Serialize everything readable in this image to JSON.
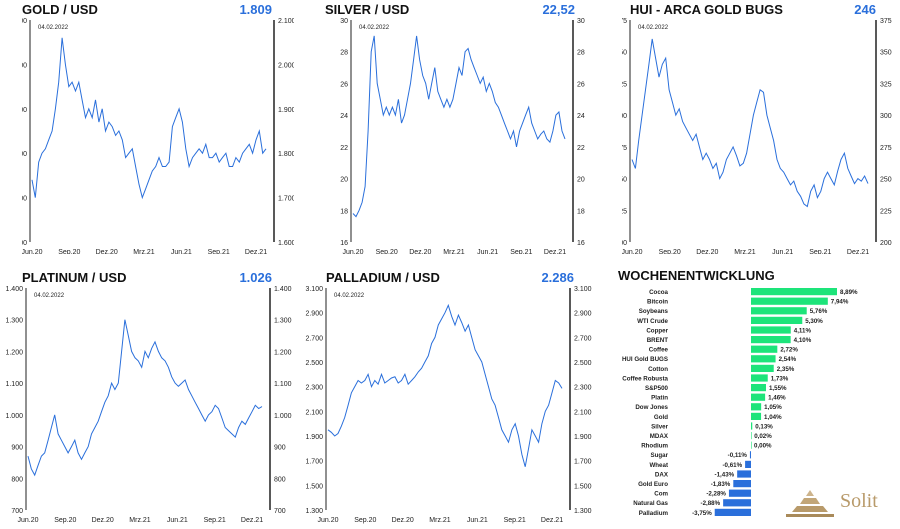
{
  "chart_data": [
    {
      "type": "line",
      "title": "GOLD / USD",
      "current_value": "1.809",
      "date_label": "04.02.2022",
      "ylim": [
        1600,
        2100
      ],
      "yticks": [
        1600,
        1700,
        1800,
        1900,
        2000,
        2100
      ],
      "ytick_labels": [
        "1.600",
        "1.700",
        "1.800",
        "1.900",
        "2.000",
        "2.100"
      ],
      "xtick_labels": [
        "Jun.20",
        "Sep.20",
        "Dez.20",
        "Mrz.21",
        "Jun.21",
        "Sep.21",
        "Dez.21"
      ],
      "series": [
        {
          "color": "#2a6fdb",
          "values": [
            1740,
            1700,
            1780,
            1800,
            1810,
            1830,
            1850,
            1900,
            1960,
            2060,
            2000,
            1950,
            1960,
            1940,
            1960,
            1920,
            1880,
            1900,
            1880,
            1920,
            1870,
            1900,
            1850,
            1870,
            1860,
            1840,
            1850,
            1830,
            1790,
            1800,
            1810,
            1770,
            1730,
            1700,
            1720,
            1740,
            1760,
            1770,
            1790,
            1770,
            1770,
            1780,
            1860,
            1880,
            1900,
            1870,
            1810,
            1770,
            1790,
            1800,
            1810,
            1800,
            1820,
            1790,
            1790,
            1800,
            1780,
            1790,
            1800,
            1770,
            1770,
            1790,
            1780,
            1800,
            1810,
            1820,
            1800,
            1830,
            1850,
            1800,
            1810
          ]
        }
      ]
    },
    {
      "type": "line",
      "title": "SILVER / USD",
      "current_value": "22,52",
      "date_label": "04.02.2022",
      "ylim": [
        16,
        30
      ],
      "yticks": [
        16,
        18,
        20,
        22,
        24,
        26,
        28,
        30
      ],
      "ytick_labels": [
        "16",
        "18",
        "20",
        "22",
        "24",
        "26",
        "28",
        "30"
      ],
      "xtick_labels": [
        "Jun.20",
        "Sep.20",
        "Dez.20",
        "Mrz.21",
        "Jun.21",
        "Sep.21",
        "Dez.21"
      ],
      "series": [
        {
          "color": "#2a6fdb",
          "values": [
            17.8,
            17.6,
            18,
            18.5,
            19.5,
            23,
            28,
            29,
            26,
            25,
            24,
            24.5,
            24,
            24.5,
            24,
            25,
            23.5,
            24,
            25,
            26,
            27.5,
            29,
            27.5,
            26.5,
            26,
            25,
            26,
            27,
            25.5,
            25,
            24.5,
            25,
            24.5,
            25,
            26,
            27,
            26.5,
            28,
            28.2,
            27.5,
            27,
            26.5,
            26,
            26.4,
            25.5,
            26,
            25.5,
            24.8,
            24.5,
            24,
            23.5,
            23,
            22.5,
            23,
            22,
            23,
            23.5,
            24,
            24.5,
            23.5,
            23,
            22.5,
            22.8,
            23,
            22.5,
            22.3,
            23,
            24,
            24.2,
            23,
            22.5
          ]
        }
      ]
    },
    {
      "type": "line",
      "title": "HUI - ARCA GOLD BUGS",
      "current_value": "246",
      "date_label": "04.02.2022",
      "ylim": [
        200,
        375
      ],
      "yticks": [
        200,
        225,
        250,
        275,
        300,
        325,
        350,
        375
      ],
      "ytick_labels": [
        "200",
        "225",
        "250",
        "275",
        "300",
        "325",
        "350",
        "375"
      ],
      "xtick_labels": [
        "Jun.20",
        "Sep.20",
        "Dez.20",
        "Mrz.21",
        "Jun.21",
        "Sep.21",
        "Dez.21"
      ],
      "series": [
        {
          "color": "#2a6fdb",
          "values": [
            265,
            258,
            280,
            300,
            320,
            340,
            360,
            345,
            330,
            340,
            345,
            320,
            310,
            300,
            305,
            295,
            290,
            285,
            280,
            285,
            275,
            265,
            270,
            265,
            258,
            262,
            250,
            255,
            265,
            270,
            275,
            268,
            260,
            262,
            270,
            285,
            300,
            310,
            320,
            318,
            300,
            290,
            280,
            265,
            258,
            255,
            250,
            245,
            248,
            240,
            236,
            230,
            228,
            240,
            245,
            235,
            240,
            250,
            255,
            250,
            245,
            256,
            265,
            270,
            258,
            252,
            246,
            250,
            248,
            252,
            246
          ]
        }
      ]
    },
    {
      "type": "line",
      "title": "PLATINUM / USD",
      "current_value": "1.026",
      "date_label": "04.02.2022",
      "ylim": [
        700,
        1400
      ],
      "yticks": [
        700,
        800,
        900,
        1000,
        1100,
        1200,
        1300,
        1400
      ],
      "ytick_labels": [
        "700",
        "800",
        "900",
        "1.000",
        "1.100",
        "1.200",
        "1.300",
        "1.400"
      ],
      "xtick_labels": [
        "Jun.20",
        "Sep.20",
        "Dez.20",
        "Mrz.21",
        "Jun.21",
        "Sep.21",
        "Dez.21"
      ],
      "series": [
        {
          "color": "#2a6fdb",
          "values": [
            870,
            830,
            810,
            840,
            870,
            880,
            920,
            960,
            1000,
            940,
            920,
            900,
            880,
            900,
            920,
            880,
            860,
            880,
            900,
            940,
            960,
            980,
            1010,
            1040,
            1060,
            1100,
            1080,
            1100,
            1200,
            1300,
            1250,
            1200,
            1180,
            1170,
            1150,
            1200,
            1180,
            1210,
            1230,
            1200,
            1180,
            1170,
            1150,
            1120,
            1100,
            1090,
            1100,
            1110,
            1080,
            1060,
            1040,
            1020,
            1000,
            980,
            1000,
            1010,
            1030,
            1020,
            990,
            960,
            950,
            940,
            930,
            960,
            980,
            970,
            990,
            1010,
            1030,
            1020,
            1026
          ]
        }
      ]
    },
    {
      "type": "line",
      "title": "PALLADIUM / USD",
      "current_value": "2.286",
      "date_label": "04.02.2022",
      "ylim": [
        1300,
        3100
      ],
      "yticks": [
        1300,
        1500,
        1700,
        1900,
        2100,
        2300,
        2500,
        2700,
        2900,
        3100
      ],
      "ytick_labels": [
        "1.300",
        "1.500",
        "1.700",
        "1.900",
        "2.100",
        "2.300",
        "2.500",
        "2.700",
        "2.900",
        "3.100"
      ],
      "xtick_labels": [
        "Jun.20",
        "Sep.20",
        "Dez.20",
        "Mrz.21",
        "Jun.21",
        "Sep.21",
        "Dez.21"
      ],
      "series": [
        {
          "color": "#2a6fdb",
          "values": [
            1950,
            1930,
            1900,
            1920,
            1980,
            2050,
            2150,
            2250,
            2300,
            2350,
            2330,
            2350,
            2400,
            2300,
            2350,
            2320,
            2400,
            2330,
            2350,
            2370,
            2380,
            2330,
            2350,
            2400,
            2320,
            2350,
            2380,
            2420,
            2450,
            2500,
            2550,
            2650,
            2700,
            2800,
            2850,
            2900,
            2960,
            2870,
            2800,
            2880,
            2820,
            2750,
            2800,
            2700,
            2600,
            2550,
            2500,
            2400,
            2300,
            2200,
            2150,
            2050,
            1950,
            1900,
            1850,
            1950,
            2000,
            1900,
            1750,
            1650,
            1800,
            1950,
            1900,
            1850,
            2000,
            2100,
            2150,
            2250,
            2350,
            2330,
            2286
          ]
        }
      ]
    },
    {
      "type": "bar",
      "orientation": "horizontal",
      "title": "WOCHENENTWICKLUNG",
      "pos_color": "#1de47a",
      "neg_color": "#2a6fdb",
      "categories": [
        "Cocoa",
        "Bitcoin",
        "Soybeans",
        "WTI Crude",
        "Copper",
        "BRENT",
        "Coffee",
        "HUI Gold BUGS",
        "Cotton",
        "Coffee Robusta",
        "S&P500",
        "Platin",
        "Dow Jones",
        "Gold",
        "Silver",
        "MDAX",
        "Rhodium",
        "Sugar",
        "Wheat",
        "DAX",
        "Gold Euro",
        "Com",
        "Natural Gas",
        "Palladium"
      ],
      "values": [
        8.89,
        7.94,
        5.76,
        5.3,
        4.11,
        4.1,
        2.72,
        2.54,
        2.35,
        1.73,
        1.55,
        1.46,
        1.05,
        1.04,
        0.13,
        0.02,
        0.0,
        -0.11,
        -0.61,
        -1.43,
        -1.83,
        -2.28,
        -2.88,
        -3.75
      ],
      "value_labels": [
        "8,89%",
        "7,94%",
        "5,76%",
        "5,30%",
        "4,11%",
        "4,10%",
        "2,72%",
        "2,54%",
        "2,35%",
        "1,73%",
        "1,55%",
        "1,46%",
        "1,05%",
        "1,04%",
        "0,13%",
        "0,02%",
        "0,00%",
        "-0,11%",
        "-0,61%",
        "-1,43%",
        "-1,83%",
        "-2,28%",
        "-2,88%",
        "-3,75%"
      ]
    }
  ],
  "logo": {
    "text": "Solit",
    "color": "#b89a6a"
  }
}
